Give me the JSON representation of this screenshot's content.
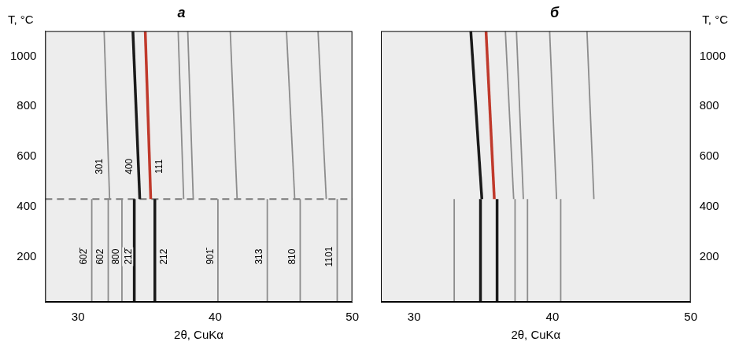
{
  "chart_data": [
    {
      "type": "line",
      "title": "а",
      "x_label": "2θ, CuKα",
      "y_label": "T, °C",
      "xlim": [
        27.6,
        50
      ],
      "xticks": [
        30,
        40,
        50
      ],
      "ylim": [
        20,
        1100
      ],
      "yticks": [
        200,
        400,
        600,
        800,
        1000
      ],
      "grid": false,
      "series": [
        {
          "color": "#8c8c8c",
          "x": [
            31.0,
            31.0
          ],
          "values": [
            20,
            430
          ]
        },
        {
          "color": "#8c8c8c",
          "x": [
            32.2,
            32.2
          ],
          "values": [
            20,
            430
          ]
        },
        {
          "color": "#8c8c8c",
          "x": [
            33.2,
            33.2
          ],
          "values": [
            20,
            430
          ]
        },
        {
          "color": "#1a1a1a",
          "x": [
            34.1,
            34.1
          ],
          "values": [
            20,
            430
          ]
        },
        {
          "color": "#1a1a1a",
          "x": [
            35.6,
            35.6
          ],
          "values": [
            20,
            430
          ]
        },
        {
          "color": "#8c8c8c",
          "x": [
            40.2,
            40.2
          ],
          "values": [
            20,
            430
          ]
        },
        {
          "color": "#8c8c8c",
          "x": [
            43.8,
            43.8
          ],
          "values": [
            20,
            430
          ]
        },
        {
          "color": "#8c8c8c",
          "x": [
            46.2,
            46.2
          ],
          "values": [
            20,
            430
          ]
        },
        {
          "color": "#8c8c8c",
          "x": [
            48.9,
            48.9
          ],
          "values": [
            20,
            430
          ]
        },
        {
          "color": "#8c8c8c",
          "x": [
            32.3,
            31.9
          ],
          "values": [
            430,
            1100
          ]
        },
        {
          "color": "#1a1a1a",
          "x": [
            34.5,
            34.0
          ],
          "values": [
            430,
            1100
          ]
        },
        {
          "color": "#c0392b",
          "x": [
            35.3,
            34.9
          ],
          "values": [
            430,
            1100
          ]
        },
        {
          "color": "#8c8c8c",
          "x": [
            37.7,
            37.3
          ],
          "values": [
            430,
            1100
          ]
        },
        {
          "color": "#8c8c8c",
          "x": [
            38.4,
            38.0
          ],
          "values": [
            430,
            1100
          ]
        },
        {
          "color": "#8c8c8c",
          "x": [
            41.6,
            41.1
          ],
          "values": [
            430,
            1100
          ]
        },
        {
          "color": "#8c8c8c",
          "x": [
            45.8,
            45.2
          ],
          "values": [
            430,
            1100
          ]
        },
        {
          "color": "#8c8c8c",
          "x": [
            48.1,
            47.5
          ],
          "values": [
            430,
            1100
          ]
        },
        {
          "color": "#7a7a7a",
          "line_style": "dashed",
          "x": [
            27.6,
            50
          ],
          "values": [
            430,
            430
          ]
        }
      ],
      "annotations": [
        {
          "text": "602̄",
          "x": 30.4,
          "y": 200
        },
        {
          "text": "602",
          "x": 31.6,
          "y": 200
        },
        {
          "text": "800",
          "x": 32.7,
          "y": 200
        },
        {
          "text": "212̄",
          "x": 33.62,
          "y": 200
        },
        {
          "text": "212",
          "x": 36.2,
          "y": 200
        },
        {
          "text": "901̄",
          "x": 39.6,
          "y": 200
        },
        {
          "text": "313",
          "x": 43.2,
          "y": 200
        },
        {
          "text": "810",
          "x": 45.6,
          "y": 200
        },
        {
          "text": "1101",
          "x": 48.3,
          "y": 200
        },
        {
          "text": "301",
          "x": 31.5,
          "y": 560
        },
        {
          "text": "400",
          "x": 33.7,
          "y": 560
        },
        {
          "text": "111",
          "x": 35.9,
          "y": 560
        }
      ]
    },
    {
      "type": "line",
      "title": "б",
      "x_label": "2θ, CuKα",
      "y_label": "T, °C",
      "xlim": [
        27.6,
        50
      ],
      "xticks": [
        30,
        40,
        50
      ],
      "ylim": [
        20,
        1100
      ],
      "yticks": [
        200,
        400,
        600,
        800,
        1000
      ],
      "grid": false,
      "series": [
        {
          "color": "#8c8c8c",
          "x": [
            32.9,
            32.9
          ],
          "values": [
            20,
            430
          ]
        },
        {
          "color": "#1a1a1a",
          "x": [
            34.8,
            34.8
          ],
          "values": [
            20,
            430
          ]
        },
        {
          "color": "#1a1a1a",
          "x": [
            36.0,
            36.0
          ],
          "values": [
            20,
            430
          ]
        },
        {
          "color": "#8c8c8c",
          "x": [
            37.3,
            37.3
          ],
          "values": [
            20,
            430
          ]
        },
        {
          "color": "#8c8c8c",
          "x": [
            38.2,
            38.2
          ],
          "values": [
            20,
            430
          ]
        },
        {
          "color": "#8c8c8c",
          "x": [
            40.6,
            40.6
          ],
          "values": [
            20,
            430
          ]
        },
        {
          "color": "#1a1a1a",
          "x": [
            34.9,
            34.1
          ],
          "values": [
            430,
            1100
          ]
        },
        {
          "color": "#c0392b",
          "x": [
            35.8,
            35.2
          ],
          "values": [
            430,
            1100
          ]
        },
        {
          "color": "#8c8c8c",
          "x": [
            37.2,
            36.6
          ],
          "values": [
            430,
            1100
          ]
        },
        {
          "color": "#8c8c8c",
          "x": [
            37.9,
            37.4
          ],
          "values": [
            430,
            1100
          ]
        },
        {
          "color": "#8c8c8c",
          "x": [
            40.3,
            39.8
          ],
          "values": [
            430,
            1100
          ]
        },
        {
          "color": "#8c8c8c",
          "x": [
            43.0,
            42.5
          ],
          "values": [
            430,
            1100
          ]
        }
      ]
    }
  ]
}
